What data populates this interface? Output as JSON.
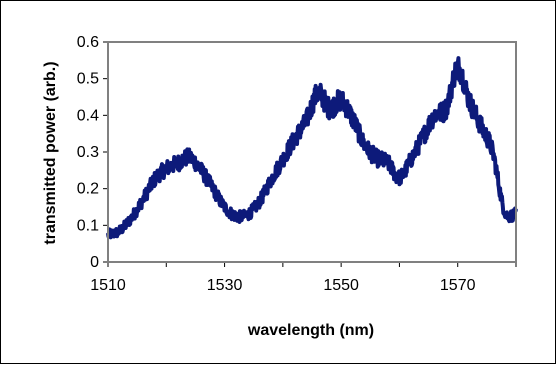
{
  "chart_data": {
    "type": "line",
    "title": "",
    "xlabel": "wavelength (nm)",
    "ylabel": "transmitted power (arb.)",
    "xlim": [
      1510,
      1580
    ],
    "ylim": [
      0,
      0.6
    ],
    "x_ticks": [
      1510,
      1530,
      1550,
      1570
    ],
    "x_tick_labels": [
      "1510",
      "1530",
      "1550",
      "1570"
    ],
    "y_ticks": [
      0,
      0.1,
      0.2,
      0.3,
      0.4,
      0.5,
      0.6
    ],
    "y_tick_labels": [
      "0",
      "0.1",
      "0.2",
      "0.3",
      "0.4",
      "0.5",
      "0.6"
    ],
    "grid": false,
    "legend": "none",
    "plot_border": true,
    "series_color": "#0d1a7a",
    "series": [
      {
        "x": [
          1510,
          1512,
          1514,
          1516,
          1518,
          1520,
          1522,
          1524,
          1526,
          1528,
          1530,
          1532,
          1534,
          1536,
          1538,
          1540,
          1542,
          1544,
          1546,
          1548,
          1550,
          1552,
          1554,
          1556,
          1558,
          1560,
          1562,
          1564,
          1566,
          1568,
          1570,
          1572,
          1574,
          1576,
          1578,
          1580
        ],
        "y": [
          0.075,
          0.085,
          0.12,
          0.17,
          0.225,
          0.255,
          0.27,
          0.285,
          0.25,
          0.2,
          0.15,
          0.125,
          0.13,
          0.165,
          0.225,
          0.28,
          0.335,
          0.385,
          0.46,
          0.42,
          0.44,
          0.39,
          0.32,
          0.285,
          0.27,
          0.23,
          0.28,
          0.34,
          0.4,
          0.42,
          0.53,
          0.44,
          0.37,
          0.3,
          0.14,
          0.13
        ]
      }
    ]
  }
}
